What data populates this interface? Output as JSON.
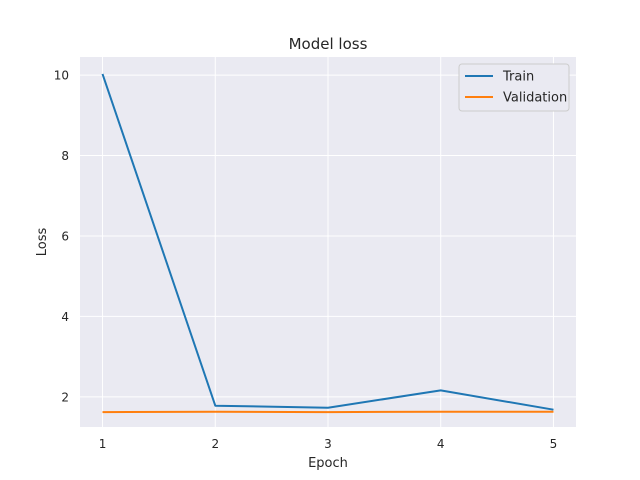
{
  "chart_data": {
    "type": "line",
    "title": "Model loss",
    "xlabel": "Epoch",
    "ylabel": "Loss",
    "x": [
      1,
      2,
      3,
      4,
      5
    ],
    "xticks": [
      1,
      2,
      3,
      4,
      5
    ],
    "yticks": [
      2,
      4,
      6,
      8,
      10
    ],
    "xlim": [
      0.8,
      5.2
    ],
    "ylim": [
      1.25,
      10.45
    ],
    "grid": true,
    "legend_position": "top-right",
    "series": [
      {
        "name": "Train",
        "color": "#1f77b4",
        "values": [
          10.03,
          1.78,
          1.73,
          2.16,
          1.68
        ]
      },
      {
        "name": "Validation",
        "color": "#ff7f0e",
        "values": [
          1.62,
          1.63,
          1.62,
          1.63,
          1.63
        ]
      }
    ]
  }
}
